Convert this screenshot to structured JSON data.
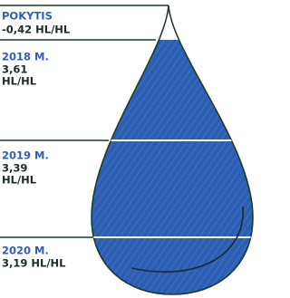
{
  "change": {
    "title": "POKYTIS",
    "value": "-0,42 HL/HL"
  },
  "levels": [
    {
      "year": "2018 M.",
      "lines": [
        "3,61",
        "HL/HL"
      ]
    },
    {
      "year": "2019 M.",
      "lines": [
        "3,39",
        "HL/HL"
      ]
    },
    {
      "year": "2020 M.",
      "lines": [
        "3,19 HL/HL"
      ]
    }
  ]
}
